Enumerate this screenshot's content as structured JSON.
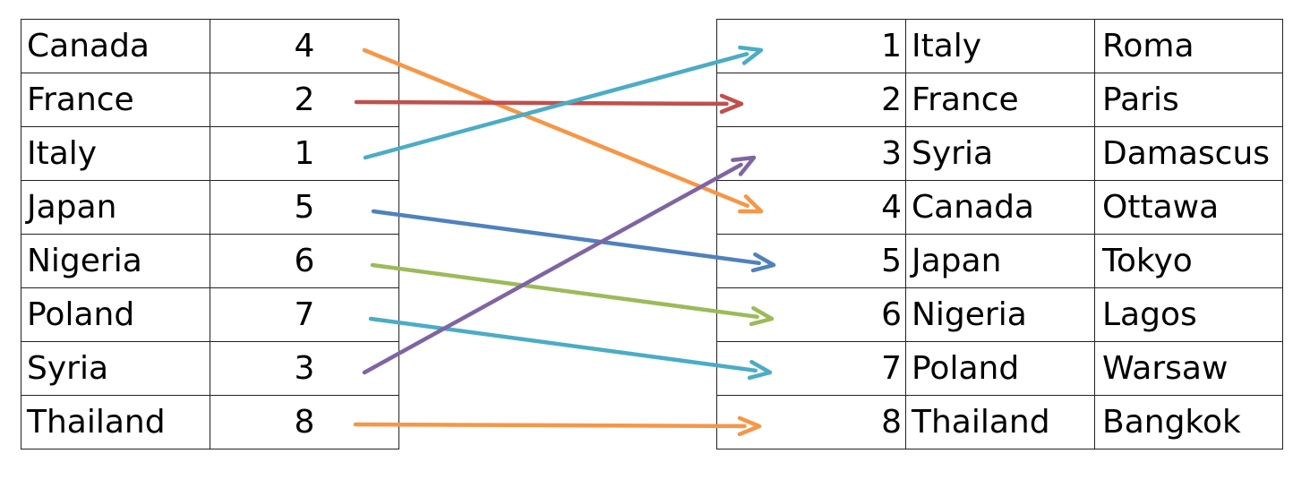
{
  "left_table": {
    "rows": [
      {
        "country": "Canada",
        "index": "4"
      },
      {
        "country": "France",
        "index": "2"
      },
      {
        "country": "Italy",
        "index": "1"
      },
      {
        "country": "Japan",
        "index": "5"
      },
      {
        "country": "Nigeria",
        "index": "6"
      },
      {
        "country": "Poland",
        "index": "7"
      },
      {
        "country": "Syria",
        "index": "3"
      },
      {
        "country": "Thailand",
        "index": "8"
      }
    ]
  },
  "right_table": {
    "rows": [
      {
        "index": "1",
        "country": "Italy",
        "capital": "Roma"
      },
      {
        "index": "2",
        "country": "France",
        "capital": "Paris"
      },
      {
        "index": "3",
        "country": "Syria",
        "capital": "Damascus"
      },
      {
        "index": "4",
        "country": "Canada",
        "capital": "Ottawa"
      },
      {
        "index": "5",
        "country": "Japan",
        "capital": "Tokyo"
      },
      {
        "index": "6",
        "country": "Nigeria",
        "capital": "Lagos"
      },
      {
        "index": "7",
        "country": "Poland",
        "capital": "Warsaw"
      },
      {
        "index": "8",
        "country": "Thailand",
        "capital": "Bangkok"
      }
    ]
  },
  "arrows": [
    {
      "from_row": 1,
      "to_row": 4,
      "color": "#F79646"
    },
    {
      "from_row": 2,
      "to_row": 2,
      "color": "#C0504D"
    },
    {
      "from_row": 3,
      "to_row": 1,
      "color": "#4BACC6"
    },
    {
      "from_row": 4,
      "to_row": 5,
      "color": "#4F81BD"
    },
    {
      "from_row": 5,
      "to_row": 6,
      "color": "#9BBB59"
    },
    {
      "from_row": 6,
      "to_row": 7,
      "color": "#4BACC6"
    },
    {
      "from_row": 7,
      "to_row": 3,
      "color": "#8064A2"
    },
    {
      "from_row": 8,
      "to_row": 8,
      "color": "#F79646"
    }
  ]
}
